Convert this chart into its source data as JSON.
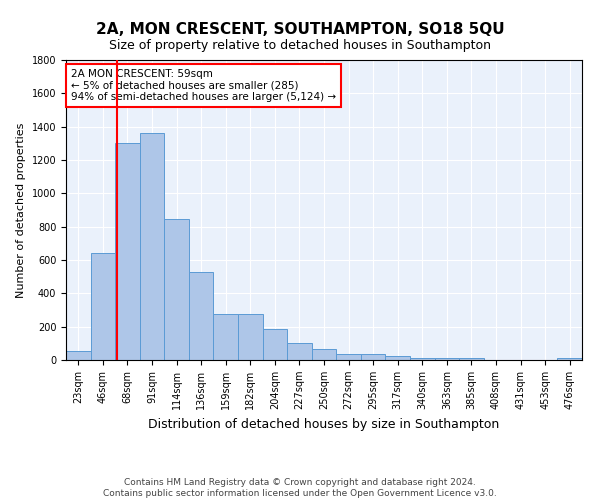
{
  "title": "2A, MON CRESCENT, SOUTHAMPTON, SO18 5QU",
  "subtitle": "Size of property relative to detached houses in Southampton",
  "xlabel": "Distribution of detached houses by size in Southampton",
  "ylabel": "Number of detached properties",
  "categories": [
    "23sqm",
    "46sqm",
    "68sqm",
    "91sqm",
    "114sqm",
    "136sqm",
    "159sqm",
    "182sqm",
    "204sqm",
    "227sqm",
    "250sqm",
    "272sqm",
    "295sqm",
    "317sqm",
    "340sqm",
    "363sqm",
    "385sqm",
    "408sqm",
    "431sqm",
    "453sqm",
    "476sqm"
  ],
  "values": [
    55,
    640,
    1305,
    1365,
    845,
    530,
    278,
    275,
    185,
    105,
    65,
    38,
    35,
    25,
    10,
    10,
    10,
    0,
    0,
    0,
    10
  ],
  "bar_color": "#aec6e8",
  "bar_edge_color": "#5b9bd5",
  "vline_color": "red",
  "annotation_text": "2A MON CRESCENT: 59sqm\n← 5% of detached houses are smaller (285)\n94% of semi-detached houses are larger (5,124) →",
  "annotation_box_color": "white",
  "annotation_box_edge_color": "red",
  "ylim": [
    0,
    1800
  ],
  "yticks": [
    0,
    200,
    400,
    600,
    800,
    1000,
    1200,
    1400,
    1600,
    1800
  ],
  "bg_color": "#eaf1fb",
  "grid_color": "white",
  "footer": "Contains HM Land Registry data © Crown copyright and database right 2024.\nContains public sector information licensed under the Open Government Licence v3.0.",
  "title_fontsize": 11,
  "subtitle_fontsize": 9,
  "xlabel_fontsize": 9,
  "ylabel_fontsize": 8,
  "footer_fontsize": 6.5,
  "tick_fontsize": 7,
  "annot_fontsize": 7.5
}
